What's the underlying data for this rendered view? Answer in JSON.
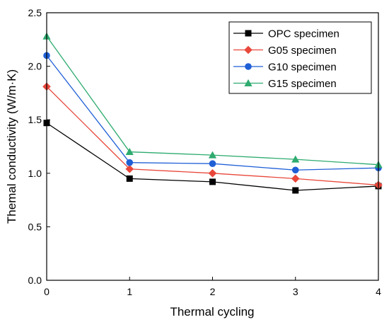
{
  "chart_data": {
    "type": "line",
    "xlabel": "Thermal cycling",
    "ylabel": "Themal conductivity (W/m·K)",
    "xlim": [
      0,
      4
    ],
    "ylim": [
      0,
      2.5
    ],
    "xticks": [
      "0",
      "1",
      "2",
      "3",
      "4"
    ],
    "yticks": [
      "0.0",
      "0.5",
      "1.0",
      "1.5",
      "2.0",
      "2.5"
    ],
    "x": [
      0,
      1,
      2,
      3,
      4
    ],
    "grid": false,
    "legend_position": "top-right",
    "series": [
      {
        "name": "OPC specimen",
        "color": "#000000",
        "marker": "square",
        "values": [
          1.47,
          0.95,
          0.92,
          0.84,
          0.88
        ]
      },
      {
        "name": "G05 specimen",
        "color": "#e8473a",
        "marker": "diamond",
        "values": [
          1.81,
          1.04,
          1.0,
          0.95,
          0.89
        ]
      },
      {
        "name": "G10 specimen",
        "color": "#1f5fd6",
        "marker": "circle",
        "values": [
          2.1,
          1.1,
          1.09,
          1.03,
          1.05
        ]
      },
      {
        "name": "G15 specimen",
        "color": "#2eab6f",
        "marker": "triangle",
        "values": [
          2.28,
          1.2,
          1.17,
          1.13,
          1.08
        ]
      }
    ]
  }
}
